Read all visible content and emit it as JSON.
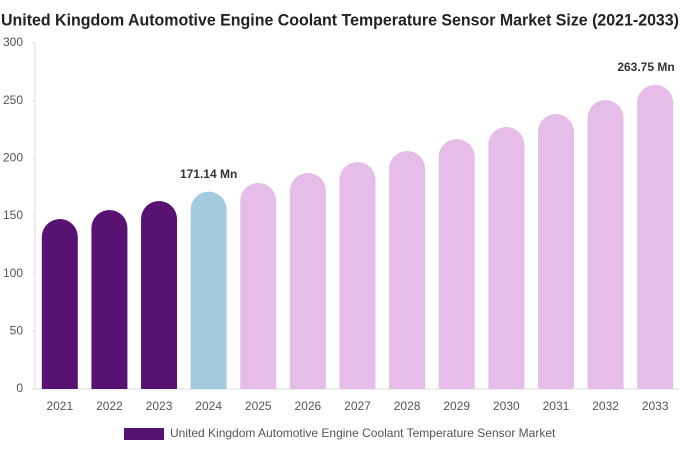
{
  "chart_data": {
    "type": "bar",
    "title": "United Kingdom Automotive Engine Coolant Temperature Sensor Market Size (2021-2033)",
    "categories": [
      "2021",
      "2022",
      "2023",
      "2024",
      "2025",
      "2026",
      "2027",
      "2028",
      "2029",
      "2030",
      "2031",
      "2032",
      "2033"
    ],
    "series": [
      {
        "name": "United Kingdom Automotive Engine Coolant Temperature Sensor Market",
        "color": "#581372",
        "values": [
          147.4,
          155.2,
          163.0,
          171.14,
          178.6,
          187.3,
          196.8,
          206.4,
          216.8,
          227.2,
          238.4,
          250.6,
          263.75
        ],
        "colors": [
          "#581372",
          "#581372",
          "#581372",
          "#a4cadf",
          "#e6bde8",
          "#e6bde8",
          "#e6bde8",
          "#e6bde8",
          "#e6bde8",
          "#e6bde8",
          "#e6bde8",
          "#e6bde8",
          "#e6bde8"
        ],
        "value_labels": [
          null,
          null,
          null,
          "171.14 Mn",
          null,
          null,
          null,
          null,
          null,
          null,
          null,
          null,
          "263.75 Mn"
        ]
      }
    ],
    "ylim": [
      0,
      300
    ],
    "yticks": [
      0,
      50,
      100,
      150,
      200,
      250,
      300
    ],
    "grid": false
  }
}
